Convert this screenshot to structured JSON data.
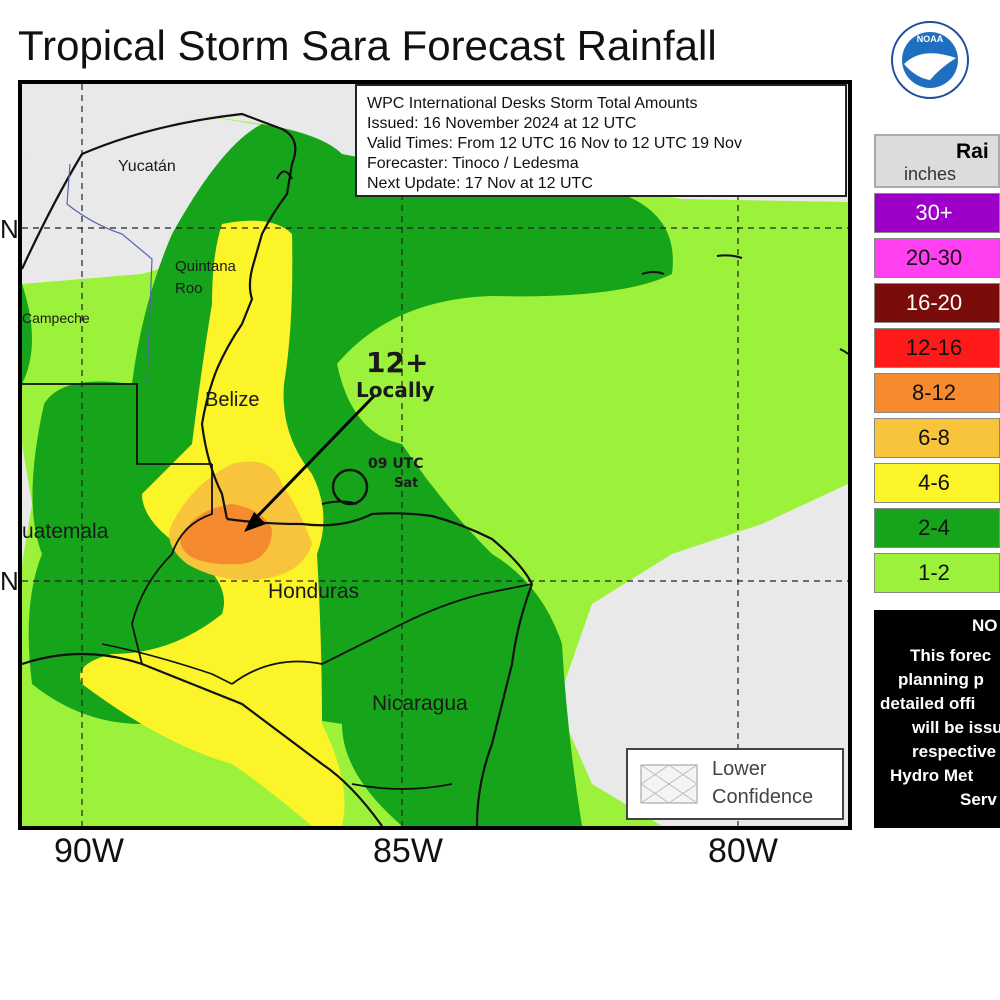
{
  "title": "Tropical Storm Sara Forecast Rainfall",
  "info": {
    "line1": "WPC International Desks Storm Total Amounts",
    "line2": "Issued:  16 November 2024 at 12 UTC",
    "line3": "Valid Times:  From 12 UTC 16 Nov  to  12 UTC 19 Nov",
    "line4": "Forecaster:  Tinoco / Ledesma",
    "line5": "Next Update: 17 Nov at 12 UTC"
  },
  "lon_labels": [
    "90W",
    "85W",
    "80W"
  ],
  "lat_label_cut": "N",
  "places": {
    "yucatan": "Yucatán",
    "quintana1": "Quintana",
    "quintana2": "Roo",
    "campeche": "Campeche",
    "belize": "Belize",
    "guatemala": "uatemala",
    "honduras": "Honduras",
    "nicaragua": "Nicaragua"
  },
  "annotation": {
    "max_value": "12+",
    "max_note": "Locally",
    "track_time": "09 UTC",
    "track_day": "Sat"
  },
  "legend": {
    "title_cut": "Rai",
    "units": "inches",
    "items": [
      {
        "label": "30+",
        "color": "#9c00c8"
      },
      {
        "label": "20-30",
        "color": "#ff3ff0"
      },
      {
        "label": "16-20",
        "color": "#7a0c0c"
      },
      {
        "label": "12-16",
        "color": "#ff1a1a"
      },
      {
        "label": "8-12",
        "color": "#f58a2f"
      },
      {
        "label": "6-8",
        "color": "#f7c43c"
      },
      {
        "label": "4-6",
        "color": "#fbf428"
      },
      {
        "label": "2-4",
        "color": "#16a51a"
      },
      {
        "label": "1-2",
        "color": "#9cf23b"
      }
    ]
  },
  "note": {
    "lines": [
      "NO",
      "This forec",
      "planning p",
      "detailed offi",
      "will be issu",
      "respective",
      "Hydro Met",
      "Serv"
    ]
  },
  "confidence": {
    "line1": "Lower",
    "line2": "Confidence"
  },
  "logo": "NOAA",
  "colors": {
    "none": "#e9e9e9",
    "green_light": "#9cf23b",
    "green_dark": "#16a51a",
    "yellow": "#fbf428",
    "gold": "#f7c43c",
    "orange": "#f58a2f"
  }
}
